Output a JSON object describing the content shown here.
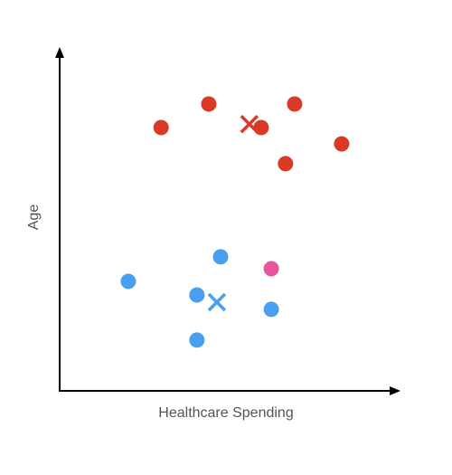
{
  "chart_data": {
    "type": "scatter",
    "x_label": "Healthcare Spending",
    "y_label": "Age",
    "xlim": [
      0,
      100
    ],
    "ylim": [
      0,
      100
    ],
    "series": [
      {
        "color": "#d93a26",
        "marker": "circle",
        "x": [
          30,
          44.1,
          59.6,
          69.5,
          83.4,
          66.8
        ],
        "values": [
          77.2,
          84.1,
          77.2,
          84.1,
          72.4,
          66.6
        ]
      },
      {
        "color": "#4a9ef0",
        "marker": "circle",
        "x": [
          20.3,
          47.6,
          40.6,
          62.6,
          40.6
        ],
        "values": [
          32.1,
          39.3,
          28.1,
          23.9,
          14.9
        ]
      },
      {
        "color": "#e8559f",
        "marker": "circle",
        "x": [
          62.6
        ],
        "values": [
          35.8
        ]
      },
      {
        "color": "#d93a26",
        "marker": "x",
        "x": [
          56.1
        ],
        "values": [
          78.2
        ]
      },
      {
        "color": "#4a9ef0",
        "marker": "x",
        "x": [
          46.5
        ],
        "values": [
          26.0
        ]
      }
    ]
  }
}
